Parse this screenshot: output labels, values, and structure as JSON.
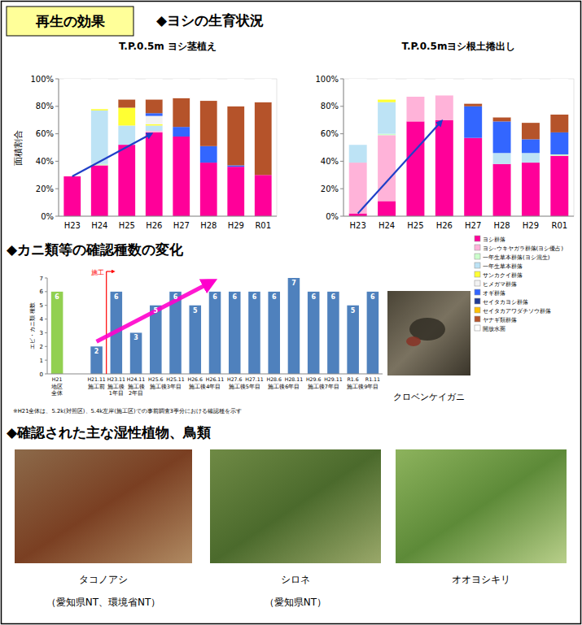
{
  "page": {
    "header": "再生の効果",
    "sections": [
      "◆ヨシの生育状況",
      "◆カニ類等の確認種数の変化",
      "◆確認された主な湿性植物、鳥類"
    ],
    "crab_photo_caption": "クロベンケイガニ",
    "photos": [
      {
        "caption": "タコノアシ",
        "note": "（愛知県NT、環境省NT）"
      },
      {
        "caption": "シロネ",
        "note": "（愛知県NT）"
      },
      {
        "caption": "オオヨシキリ"
      }
    ]
  },
  "chart_data": [
    {
      "type": "bar",
      "stacked": true,
      "title": "T.P.0.5m ヨシ茎植え",
      "y_label": "面積割合",
      "legend": "right",
      "categories": [
        "H23",
        "H24",
        "H25",
        "H26",
        "H27",
        "H28",
        "H29",
        "R01"
      ],
      "ylim": [
        0,
        100
      ],
      "yticks": [
        {
          "value": 0,
          "label": "0%"
        },
        {
          "value": 20,
          "label": "20%"
        },
        {
          "value": 40,
          "label": "40%"
        },
        {
          "value": 60,
          "label": "60%"
        },
        {
          "value": 80,
          "label": "80%"
        },
        {
          "value": 100,
          "label": "100%"
        }
      ],
      "series": [
        {
          "name": "ヨシ群落",
          "color": "#ff0099",
          "values": [
            29,
            37,
            52,
            61,
            58,
            39,
            36,
            30
          ]
        },
        {
          "name": "ヨシ-ウキヤガラ群落(ヨシ優占)",
          "color": "#ffb3d9",
          "values": [
            0,
            0,
            0,
            1,
            0,
            0,
            0,
            0
          ]
        },
        {
          "name": "一年生草本群落(ヨシ混生)",
          "color": "#ccffcc",
          "values": [
            0,
            1,
            0,
            0,
            0,
            0,
            0,
            0
          ]
        },
        {
          "name": "一年生草本群落",
          "color": "#bde3f5",
          "values": [
            0,
            39,
            14,
            4,
            0,
            0,
            0,
            0
          ]
        },
        {
          "name": "サンカクイ群落",
          "color": "#ffff33",
          "values": [
            0,
            1,
            13,
            1,
            0,
            0,
            0,
            0
          ]
        },
        {
          "name": "ヒメガマ群落",
          "color": "#f2f2f2",
          "values": [
            0,
            0,
            0,
            6,
            0,
            0,
            0,
            0
          ]
        },
        {
          "name": "オギ群落",
          "color": "#3366ff",
          "values": [
            0,
            0,
            0,
            2,
            7,
            12,
            1,
            0
          ]
        },
        {
          "name": "セイタカヨシ群落",
          "color": "#1f3a93",
          "values": [
            0,
            0,
            0,
            0,
            0,
            0,
            0,
            0
          ]
        },
        {
          "name": "セイタカアワダチソウ群落",
          "color": "#ffc000",
          "values": [
            0,
            0,
            0,
            0,
            0,
            0,
            0,
            0
          ]
        },
        {
          "name": "ヤナギ類群落",
          "color": "#b5532a",
          "values": [
            0,
            0,
            6,
            10,
            21,
            33,
            43,
            53
          ]
        },
        {
          "name": "開放水面",
          "color": "#ffffff",
          "values": [
            71,
            22,
            15,
            15,
            14,
            16,
            20,
            17
          ]
        }
      ]
    },
    {
      "type": "bar",
      "stacked": true,
      "title": "T.P.0.5mヨシ根土捲出し",
      "categories": [
        "H23",
        "H24",
        "H25",
        "H26",
        "H27",
        "H28",
        "H29",
        "R01"
      ],
      "ylim": [
        0,
        100
      ],
      "yticks": [
        {
          "value": 0,
          "label": "0%"
        },
        {
          "value": 20,
          "label": "20%"
        },
        {
          "value": 40,
          "label": "40%"
        },
        {
          "value": 60,
          "label": "60%"
        },
        {
          "value": 80,
          "label": "80%"
        },
        {
          "value": 100,
          "label": "100%"
        }
      ],
      "series": [
        {
          "name": "ヨシ群落",
          "color": "#ff0099",
          "values": [
            2,
            11,
            69,
            70,
            57,
            38,
            39,
            44
          ]
        },
        {
          "name": "ヨシ-ウキヤガラ群落(ヨシ優占)",
          "color": "#ffb3d9",
          "values": [
            37,
            48,
            18,
            18,
            0,
            0,
            0,
            0
          ]
        },
        {
          "name": "一年生草本群落(ヨシ混生)",
          "color": "#ccffcc",
          "values": [
            0,
            1,
            0,
            0,
            0,
            0,
            0,
            1
          ]
        },
        {
          "name": "一年生草本群落",
          "color": "#bde3f5",
          "values": [
            13,
            23,
            0,
            0,
            0,
            8,
            7,
            0
          ]
        },
        {
          "name": "サンカクイ群落",
          "color": "#ffff33",
          "values": [
            0,
            2,
            0,
            0,
            0,
            0,
            0,
            0
          ]
        },
        {
          "name": "ヒメガマ群落",
          "color": "#f2f2f2",
          "values": [
            0,
            0,
            0,
            0,
            0,
            0,
            0,
            0
          ]
        },
        {
          "name": "オギ群落",
          "color": "#3366ff",
          "values": [
            0,
            0,
            0,
            0,
            23,
            23,
            10,
            16
          ]
        },
        {
          "name": "セイタカヨシ群落",
          "color": "#1f3a93",
          "values": [
            0,
            0,
            0,
            0,
            0,
            0,
            0,
            0
          ]
        },
        {
          "name": "セイタカアワダチソウ群落",
          "color": "#ffc000",
          "values": [
            0,
            0,
            0,
            0,
            0,
            0,
            0,
            0
          ]
        },
        {
          "name": "ヤナギ類群落",
          "color": "#b5532a",
          "values": [
            0,
            0,
            0,
            0,
            2,
            3,
            12,
            13
          ]
        },
        {
          "name": "開放水面",
          "color": "#ffffff",
          "values": [
            48,
            15,
            13,
            12,
            18,
            28,
            32,
            26
          ]
        }
      ]
    },
    {
      "type": "bar",
      "data_labels": true,
      "y_label": "エビ・カニ類 種数",
      "categories": [
        "H21",
        "H21.11",
        "H23.11",
        "H24.11",
        "H25.6",
        "H25.11",
        "H26.6",
        "H26.11",
        "H27.6",
        "H27.11",
        "H28.6",
        "H28.11",
        "H29.6",
        "H29.11",
        "R1.6",
        "R1.11"
      ],
      "values": [
        6,
        2,
        6,
        3,
        5,
        6,
        5,
        6,
        6,
        6,
        6,
        7,
        6,
        6,
        5,
        6
      ],
      "colors": [
        "#92d050",
        "#4f81bd",
        "#4f81bd",
        "#4f81bd",
        "#4f81bd",
        "#4f81bd",
        "#4f81bd",
        "#4f81bd",
        "#4f81bd",
        "#4f81bd",
        "#4f81bd",
        "#4f81bd",
        "#4f81bd",
        "#4f81bd",
        "#4f81bd",
        "#4f81bd"
      ],
      "groups": [
        {
          "label": "地区全体",
          "span": 1
        },
        {
          "label": "施工前",
          "span": 1
        },
        {
          "label": "施工後1年目",
          "span": 1
        },
        {
          "label": "施工後2年目",
          "span": 1
        },
        {
          "label": "施工後3年目",
          "span": 2
        },
        {
          "label": "施工後4年目",
          "span": 2
        },
        {
          "label": "施工後5年目",
          "span": 2
        },
        {
          "label": "施工後6年目",
          "span": 2
        },
        {
          "label": "施工後7年目",
          "span": 2
        },
        {
          "label": "施工後9年目",
          "span": 2
        }
      ],
      "ylim": [
        0,
        7
      ],
      "yticks": [
        0,
        1,
        2,
        3,
        4,
        5,
        6,
        7
      ],
      "annotations": [
        "施工"
      ],
      "note": "※H21全体は、5.2k(対照区)、5.4k左岸(施工区)での事前調査3季分における確認種を示す"
    }
  ]
}
